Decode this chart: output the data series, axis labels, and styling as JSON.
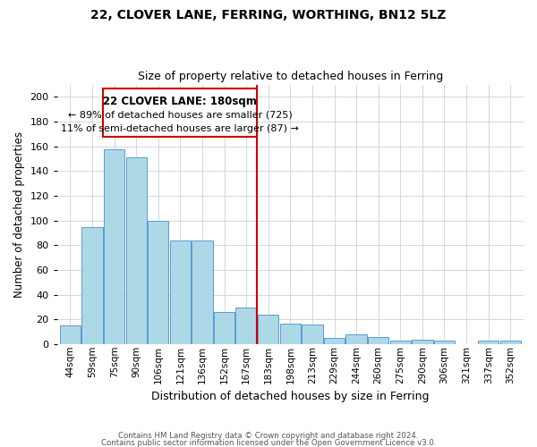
{
  "title1": "22, CLOVER LANE, FERRING, WORTHING, BN12 5LZ",
  "title2": "Size of property relative to detached houses in Ferring",
  "xlabel": "Distribution of detached houses by size in Ferring",
  "ylabel": "Number of detached properties",
  "bar_labels": [
    "44sqm",
    "59sqm",
    "75sqm",
    "90sqm",
    "106sqm",
    "121sqm",
    "136sqm",
    "152sqm",
    "167sqm",
    "183sqm",
    "198sqm",
    "213sqm",
    "229sqm",
    "244sqm",
    "260sqm",
    "275sqm",
    "290sqm",
    "306sqm",
    "321sqm",
    "337sqm",
    "352sqm"
  ],
  "bar_values": [
    15,
    95,
    158,
    151,
    100,
    84,
    84,
    26,
    30,
    24,
    17,
    16,
    5,
    8,
    6,
    3,
    4,
    3,
    0,
    3,
    3
  ],
  "bar_color": "#add8e6",
  "bar_edgecolor": "#5b9bd5",
  "vline_color": "#cc0000",
  "vline_label": "183sqm",
  "ylim": [
    0,
    210
  ],
  "yticks": [
    0,
    20,
    40,
    60,
    80,
    100,
    120,
    140,
    160,
    180,
    200
  ],
  "annotation_title": "22 CLOVER LANE: 180sqm",
  "annotation_line1": "← 89% of detached houses are smaller (725)",
  "annotation_line2": "11% of semi-detached houses are larger (87) →",
  "annotation_box_edgecolor": "#cc0000",
  "footnote1": "Contains HM Land Registry data © Crown copyright and database right 2024.",
  "footnote2": "Contains public sector information licensed under the Open Government Licence v3.0.",
  "background_color": "#ffffff",
  "grid_color": "#d0d0d8"
}
